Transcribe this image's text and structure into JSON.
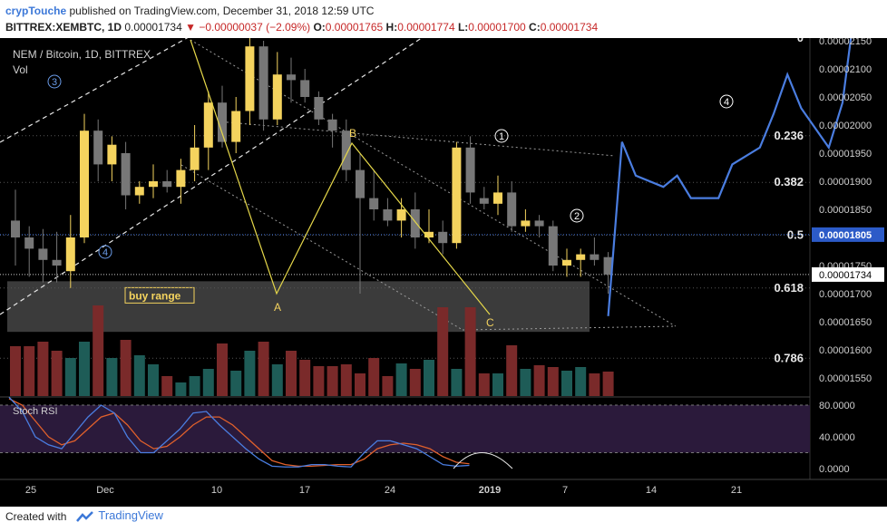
{
  "header": {
    "author": "crypTouche",
    "published": "published on TradingView.com, December 31, 2018 12:59 UTC",
    "symbol": "BITTREX:XEMBTC, 1D",
    "last": "0.00001734",
    "change_arrow": "▼",
    "change": "−0.00000037 (−2.09%)",
    "o_label": "O:",
    "o_value": "0.00001765",
    "h_label": "H:",
    "h_value": "0.00001774",
    "l_label": "L:",
    "l_value": "0.00001700",
    "c_label": "C:",
    "c_value": "0.00001734"
  },
  "footer": {
    "created": "Created with",
    "brand": "TradingView"
  },
  "pane": {
    "title": "NEM / Bitcoin, 1D, BITTREX",
    "vol_label": "Vol",
    "rsi_label": "Stoch RSI"
  },
  "colors": {
    "up": "#f4d35e",
    "down": "#777777",
    "vol_up": "#1e5c57",
    "vol_down": "#7a2a2a",
    "projection": "#4a7de0",
    "fib": "#e8e8e8",
    "k_line": "#4a7de0",
    "d_line": "#e0602b",
    "rsi_band": "#2b1a3b",
    "bg": "#000000"
  },
  "chart_data": {
    "type": "candlestick",
    "price_axis": {
      "ticks": [
        "0.00002150",
        "0.00002100",
        "0.00002050",
        "0.00002000",
        "0.00001950",
        "0.00001900",
        "0.00001850",
        "0.00001750",
        "0.00001700",
        "0.00001650",
        "0.00001600",
        "0.00001550"
      ],
      "tick_values": [
        2.15e-05,
        2.1e-05,
        2.05e-05,
        2e-05,
        1.95e-05,
        1.9e-05,
        1.85e-05,
        1.75e-05,
        1.7e-05,
        1.65e-05,
        1.6e-05,
        1.55e-05
      ],
      "marked_prices": [
        {
          "label": "0.00001805",
          "value": 1.805e-05,
          "style": "highlight"
        },
        {
          "label": "0.00001734",
          "value": 1.734e-05,
          "style": "current"
        }
      ]
    },
    "x_axis": {
      "labels": [
        "25",
        "Dec",
        "10",
        "17",
        "24",
        "2019",
        "7",
        "14",
        "21"
      ]
    },
    "fib_levels": [
      {
        "label": "0",
        "value": 2.155e-05
      },
      {
        "label": "0.236",
        "value": 1.981e-05
      },
      {
        "label": "0.382",
        "value": 1.898e-05
      },
      {
        "label": "0.5",
        "value": 1.804e-05
      },
      {
        "label": "0.618",
        "value": 1.71e-05
      },
      {
        "label": "0.786",
        "value": 1.585e-05
      }
    ],
    "candles": [
      {
        "o": 1.83e-05,
        "h": 1.885e-05,
        "l": 1.75e-05,
        "c": 1.8e-05
      },
      {
        "o": 1.8e-05,
        "h": 1.82e-05,
        "l": 1.73e-05,
        "c": 1.78e-05
      },
      {
        "o": 1.78e-05,
        "h": 1.815e-05,
        "l": 1.72e-05,
        "c": 1.76e-05
      },
      {
        "o": 1.76e-05,
        "h": 1.81e-05,
        "l": 1.72e-05,
        "c": 1.75e-05
      },
      {
        "o": 1.74e-05,
        "h": 1.84e-05,
        "l": 1.71e-05,
        "c": 1.8e-05
      },
      {
        "o": 1.8e-05,
        "h": 2.02e-05,
        "l": 1.79e-05,
        "c": 1.99e-05
      },
      {
        "o": 1.99e-05,
        "h": 2.01e-05,
        "l": 1.9e-05,
        "c": 1.93e-05
      },
      {
        "o": 1.93e-05,
        "h": 1.98e-05,
        "l": 1.9e-05,
        "c": 1.965e-05
      },
      {
        "o": 1.95e-05,
        "h": 1.97e-05,
        "l": 1.85e-05,
        "c": 1.875e-05
      },
      {
        "o": 1.875e-05,
        "h": 1.9e-05,
        "l": 1.86e-05,
        "c": 1.89e-05
      },
      {
        "o": 1.89e-05,
        "h": 1.93e-05,
        "l": 1.87e-05,
        "c": 1.9e-05
      },
      {
        "o": 1.9e-05,
        "h": 1.92e-05,
        "l": 1.88e-05,
        "c": 1.89e-05
      },
      {
        "o": 1.89e-05,
        "h": 1.94e-05,
        "l": 1.86e-05,
        "c": 1.92e-05
      },
      {
        "o": 1.92e-05,
        "h": 2e-05,
        "l": 1.9e-05,
        "c": 1.96e-05
      },
      {
        "o": 1.96e-05,
        "h": 2.06e-05,
        "l": 1.92e-05,
        "c": 2.04e-05
      },
      {
        "o": 2.04e-05,
        "h": 2.07e-05,
        "l": 1.96e-05,
        "c": 1.97e-05
      },
      {
        "o": 1.97e-05,
        "h": 2.05e-05,
        "l": 1.95e-05,
        "c": 2.025e-05
      },
      {
        "o": 2.025e-05,
        "h": 2.16e-05,
        "l": 2e-05,
        "c": 2.14e-05
      },
      {
        "o": 2.14e-05,
        "h": 2.15e-05,
        "l": 1.99e-05,
        "c": 2.01e-05
      },
      {
        "o": 2.01e-05,
        "h": 2.13e-05,
        "l": 2e-05,
        "c": 2.09e-05
      },
      {
        "o": 2.09e-05,
        "h": 2.12e-05,
        "l": 2.04e-05,
        "c": 2.08e-05
      },
      {
        "o": 2.08e-05,
        "h": 2.1e-05,
        "l": 2.04e-05,
        "c": 2.05e-05
      },
      {
        "o": 2.05e-05,
        "h": 2.06e-05,
        "l": 2e-05,
        "c": 2.01e-05
      },
      {
        "o": 2.01e-05,
        "h": 2.02e-05,
        "l": 1.96e-05,
        "c": 1.99e-05
      },
      {
        "o": 1.99e-05,
        "h": 2.01e-05,
        "l": 1.9e-05,
        "c": 1.92e-05
      },
      {
        "o": 1.92e-05,
        "h": 1.95e-05,
        "l": 1.7e-05,
        "c": 1.87e-05
      },
      {
        "o": 1.87e-05,
        "h": 1.92e-05,
        "l": 1.83e-05,
        "c": 1.85e-05
      },
      {
        "o": 1.85e-05,
        "h": 1.87e-05,
        "l": 1.82e-05,
        "c": 1.83e-05
      },
      {
        "o": 1.83e-05,
        "h": 1.87e-05,
        "l": 1.8e-05,
        "c": 1.85e-05
      },
      {
        "o": 1.85e-05,
        "h": 1.88e-05,
        "l": 1.78e-05,
        "c": 1.8e-05
      },
      {
        "o": 1.8e-05,
        "h": 1.85e-05,
        "l": 1.79e-05,
        "c": 1.81e-05
      },
      {
        "o": 1.81e-05,
        "h": 1.83e-05,
        "l": 1.77e-05,
        "c": 1.79e-05
      },
      {
        "o": 1.79e-05,
        "h": 1.97e-05,
        "l": 1.78e-05,
        "c": 1.96e-05
      },
      {
        "o": 1.96e-05,
        "h": 1.98e-05,
        "l": 1.86e-05,
        "c": 1.88e-05
      },
      {
        "o": 1.87e-05,
        "h": 1.89e-05,
        "l": 1.85e-05,
        "c": 1.86e-05
      },
      {
        "o": 1.86e-05,
        "h": 1.91e-05,
        "l": 1.84e-05,
        "c": 1.88e-05
      },
      {
        "o": 1.88e-05,
        "h": 1.9e-05,
        "l": 1.81e-05,
        "c": 1.82e-05
      },
      {
        "o": 1.82e-05,
        "h": 1.85e-05,
        "l": 1.81e-05,
        "c": 1.83e-05
      },
      {
        "o": 1.83e-05,
        "h": 1.84e-05,
        "l": 1.8e-05,
        "c": 1.82e-05
      },
      {
        "o": 1.82e-05,
        "h": 1.83e-05,
        "l": 1.74e-05,
        "c": 1.75e-05
      },
      {
        "o": 1.75e-05,
        "h": 1.78e-05,
        "l": 1.73e-05,
        "c": 1.76e-05
      },
      {
        "o": 1.76e-05,
        "h": 1.78e-05,
        "l": 1.73e-05,
        "c": 1.77e-05
      },
      {
        "o": 1.77e-05,
        "h": 1.8e-05,
        "l": 1.75e-05,
        "c": 1.76e-05
      },
      {
        "o": 1.765e-05,
        "h": 1.774e-05,
        "l": 1.7e-05,
        "c": 1.734e-05
      }
    ],
    "volume_relative": [
      0.55,
      0.55,
      0.6,
      0.5,
      0.42,
      0.6,
      1.0,
      0.42,
      0.62,
      0.45,
      0.35,
      0.22,
      0.15,
      0.22,
      0.3,
      0.58,
      0.28,
      0.5,
      0.6,
      0.35,
      0.5,
      0.4,
      0.33,
      0.33,
      0.35,
      0.25,
      0.42,
      0.22,
      0.36,
      0.3,
      0.4,
      0.98,
      0.3,
      0.98,
      0.25,
      0.25,
      0.56,
      0.3,
      0.34,
      0.32,
      0.28,
      0.32,
      0.25,
      0.27
    ],
    "projection_path": [
      [
        43,
        1.66e-05
      ],
      [
        44,
        1.97e-05
      ],
      [
        45,
        1.91e-05
      ],
      [
        47,
        1.89e-05
      ],
      [
        48,
        1.91e-05
      ],
      [
        49,
        1.87e-05
      ],
      [
        51,
        1.87e-05
      ],
      [
        52,
        1.93e-05
      ],
      [
        54,
        1.96e-05
      ],
      [
        55,
        2.02e-05
      ],
      [
        56,
        2.09e-05
      ],
      [
        57,
        2.03e-05
      ],
      [
        59,
        1.96e-05
      ],
      [
        60,
        2.04e-05
      ],
      [
        61,
        2.23e-05
      ],
      [
        62,
        2.26e-05
      ],
      [
        63,
        2.18e-05
      ],
      [
        64,
        2.11e-05
      ],
      [
        65,
        2.11e-05
      ],
      [
        66,
        2.12e-05
      ],
      [
        67,
        2.16e-05
      ]
    ],
    "stoch_rsi": {
      "ticks": [
        "80.0000",
        "40.0000",
        "0.0000"
      ],
      "tick_values": [
        80,
        40,
        0
      ],
      "k": [
        90,
        72,
        40,
        30,
        25,
        45,
        65,
        80,
        70,
        40,
        20,
        20,
        35,
        50,
        70,
        72,
        55,
        40,
        25,
        12,
        3,
        2,
        2,
        5,
        5,
        3,
        2,
        20,
        35,
        35,
        30,
        25,
        15,
        5,
        3,
        4
      ],
      "d": [
        88,
        80,
        60,
        40,
        30,
        35,
        50,
        65,
        70,
        55,
        35,
        25,
        28,
        40,
        55,
        65,
        65,
        55,
        40,
        25,
        10,
        5,
        3,
        3,
        4,
        5,
        5,
        12,
        25,
        30,
        32,
        30,
        25,
        15,
        8,
        6
      ]
    },
    "annotations": [
      {
        "text": "A",
        "kind": "pattern-point"
      },
      {
        "text": "B",
        "kind": "pattern-point"
      },
      {
        "text": "C",
        "kind": "pattern-point"
      },
      {
        "text": "3",
        "kind": "wave-count"
      },
      {
        "text": "4",
        "kind": "wave-count"
      },
      {
        "text": "1",
        "kind": "wave-count"
      },
      {
        "text": "2",
        "kind": "wave-count"
      },
      {
        "text": "4",
        "kind": "wave-count"
      },
      {
        "text": "buy range",
        "kind": "zone-label"
      }
    ]
  }
}
